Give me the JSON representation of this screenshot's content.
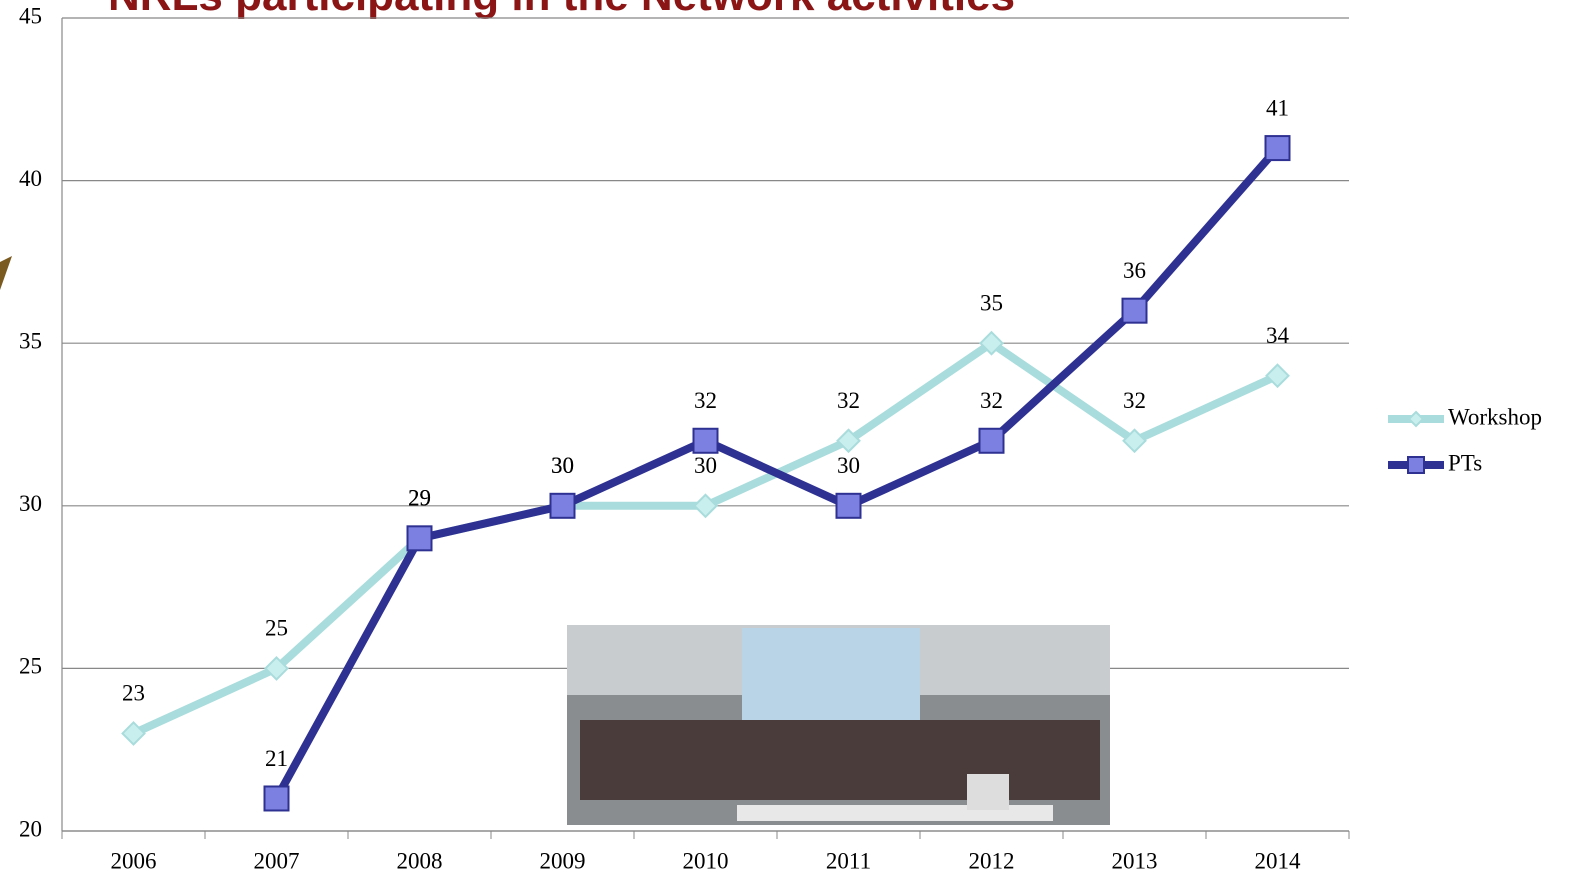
{
  "chart_data": {
    "type": "line",
    "title": "NRLs participating in the Network activities",
    "categories": [
      "2006",
      "2007",
      "2008",
      "2009",
      "2010",
      "2011",
      "2012",
      "2013",
      "2014"
    ],
    "series": [
      {
        "name": "Workshop",
        "color": "#a9dcdc",
        "values": [
          23,
          25,
          29,
          30,
          30,
          32,
          35,
          32,
          34
        ]
      },
      {
        "name": "PTs",
        "color": "#2e3192",
        "values": [
          null,
          21,
          29,
          30,
          32,
          30,
          32,
          36,
          41
        ]
      }
    ],
    "ylim": [
      20,
      45
    ],
    "yticks": [
      20,
      25,
      30,
      35,
      40,
      45
    ],
    "grid": true,
    "legend": "right"
  }
}
